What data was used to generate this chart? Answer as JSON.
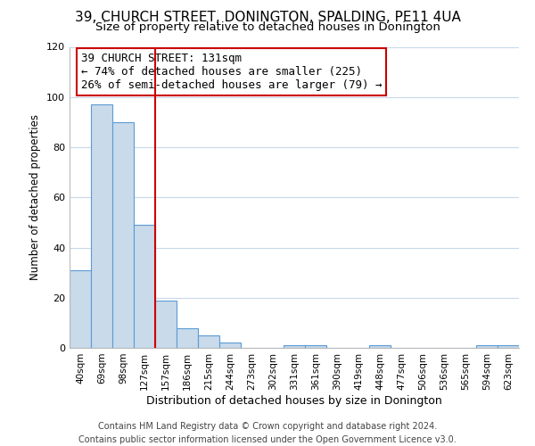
{
  "title": "39, CHURCH STREET, DONINGTON, SPALDING, PE11 4UA",
  "subtitle": "Size of property relative to detached houses in Donington",
  "xlabel": "Distribution of detached houses by size in Donington",
  "ylabel": "Number of detached properties",
  "bar_labels": [
    "40sqm",
    "69sqm",
    "98sqm",
    "127sqm",
    "157sqm",
    "186sqm",
    "215sqm",
    "244sqm",
    "273sqm",
    "302sqm",
    "331sqm",
    "361sqm",
    "390sqm",
    "419sqm",
    "448sqm",
    "477sqm",
    "506sqm",
    "536sqm",
    "565sqm",
    "594sqm",
    "623sqm"
  ],
  "bar_values": [
    31,
    97,
    90,
    49,
    19,
    8,
    5,
    2,
    0,
    0,
    1,
    1,
    0,
    0,
    1,
    0,
    0,
    0,
    0,
    1,
    1
  ],
  "bar_color": "#c9daea",
  "bar_edge_color": "#5b9bd5",
  "annotation_line1": "39 CHURCH STREET: 131sqm",
  "annotation_line2": "← 74% of detached houses are smaller (225)",
  "annotation_line3": "26% of semi-detached houses are larger (79) →",
  "annotation_box_color": "#ffffff",
  "annotation_box_edge_color": "#cc0000",
  "property_bin_index": 3,
  "ylim": [
    0,
    120
  ],
  "yticks": [
    0,
    20,
    40,
    60,
    80,
    100,
    120
  ],
  "background_color": "#ffffff",
  "grid_color": "#c8d8ea",
  "footer_line1": "Contains HM Land Registry data © Crown copyright and database right 2024.",
  "footer_line2": "Contains public sector information licensed under the Open Government Licence v3.0.",
  "title_fontsize": 11,
  "subtitle_fontsize": 9.5,
  "annotation_fontsize": 9,
  "xlabel_fontsize": 9,
  "ylabel_fontsize": 8.5,
  "footer_fontsize": 7
}
